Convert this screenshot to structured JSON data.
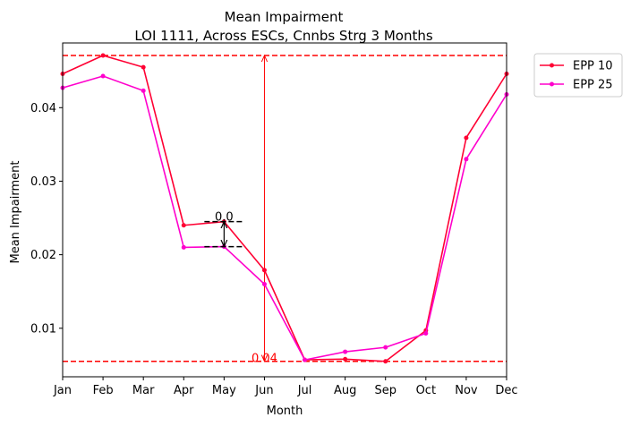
{
  "chart_data": {
    "type": "line",
    "title": "Mean Impairment",
    "subtitle": "LOI 1111, Across ESCs, Cnnbs Strg 3 Months",
    "xlabel": "Month",
    "ylabel": "Mean Impairment",
    "categories": [
      "Jan",
      "Feb",
      "Mar",
      "Apr",
      "May",
      "Jun",
      "Jul",
      "Aug",
      "Sep",
      "Oct",
      "Nov",
      "Dec"
    ],
    "xlim": [
      0,
      11
    ],
    "ylim": [
      0.0034,
      0.0488
    ],
    "yticks": [
      0.01,
      0.02,
      0.03,
      0.04
    ],
    "ytick_labels": [
      "0.01",
      "0.02",
      "0.03",
      "0.04"
    ],
    "grid": false,
    "legend_position": "outside-top-right",
    "series": [
      {
        "name": "EPP 10",
        "color": "#ff0033",
        "values": [
          0.0446,
          0.0471,
          0.0455,
          0.024,
          0.0245,
          0.0179,
          0.0057,
          0.0058,
          0.0055,
          0.0097,
          0.0359,
          0.0446
        ]
      },
      {
        "name": "EPP 25",
        "color": "#ff00cc",
        "values": [
          0.0427,
          0.0443,
          0.0423,
          0.021,
          0.0211,
          0.016,
          0.0057,
          0.0068,
          0.0074,
          0.0093,
          0.033,
          0.0418
        ]
      }
    ],
    "annotations": {
      "hlines": [
        {
          "y": 0.0471,
          "color": "#ff0000",
          "style": "dashed"
        },
        {
          "y": 0.0055,
          "color": "#ff0000",
          "style": "dashed"
        }
      ],
      "range_arrow": {
        "x": "Jun",
        "y_from": 0.0055,
        "y_to": 0.0471,
        "color": "#ff0000",
        "label": "0.04"
      },
      "gap_marker": {
        "x": "May",
        "y_top": 0.0245,
        "y_bottom": 0.0211,
        "label": "0.0",
        "color": "#000000"
      }
    }
  }
}
